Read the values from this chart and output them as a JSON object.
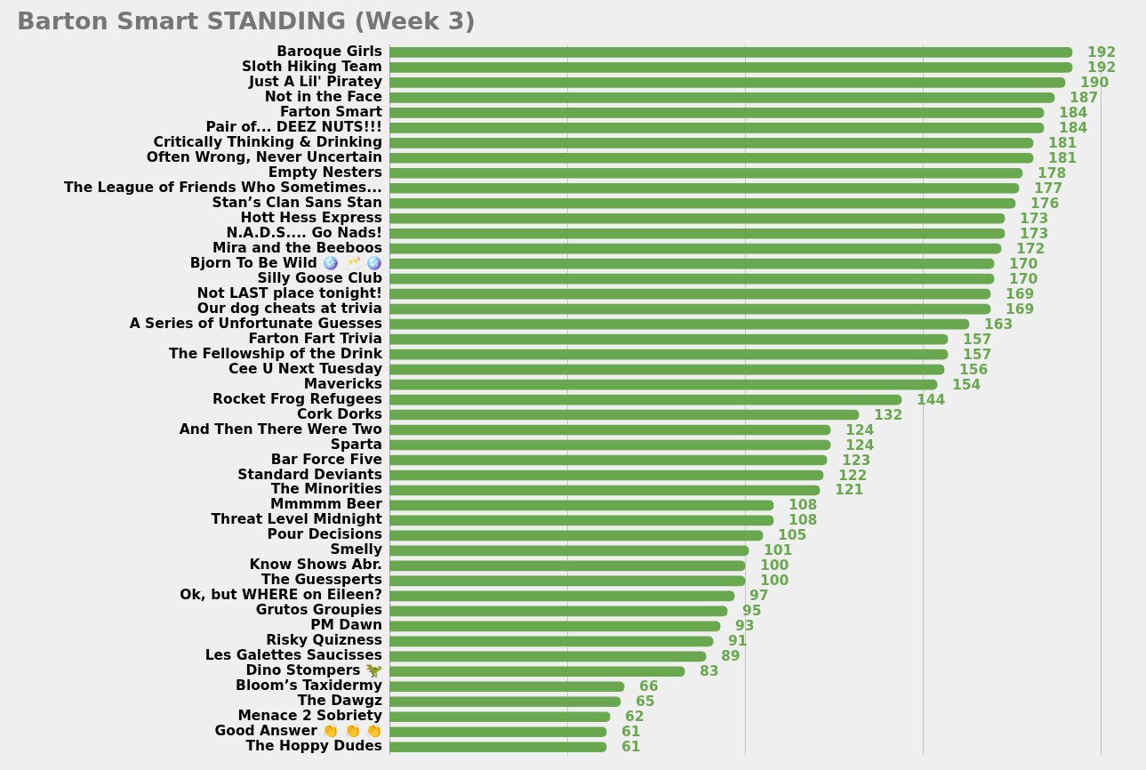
{
  "chart_data": {
    "type": "bar",
    "title": "Barton Smart STANDING (Week 3)",
    "orientation": "horizontal",
    "categories": [
      "Baroque Girls",
      "Sloth Hiking Team",
      "Just A Lil' Piratey",
      "Not in the Face",
      "Farton Smart",
      "Pair of... DEEZ NUTS!!!",
      "Critically Thinking & Drinking",
      "Often Wrong, Never Uncertain",
      "Empty Nesters",
      "The League of Friends Who Sometimes...",
      "Stan’s Clan Sans Stan",
      "Hott Hess Express",
      "N.A.D.S.... Go Nads!",
      "Mira and the Beeboos",
      "Bjorn To Be Wild 🪩 🥂 🪩",
      "Silly Goose Club",
      "Not LAST place tonight!",
      "Our dog cheats at trivia",
      "A Series of Unfortunate Guesses",
      "Farton Fart Trivia",
      "The Fellowship of the Drink",
      "Cee U Next Tuesday",
      "Mavericks",
      "Rocket Frog Refugees",
      "Cork Dorks",
      "And Then There Were Two",
      "Sparta",
      "Bar Force Five",
      "Standard Deviants",
      "The Minorities",
      "Mmmmm Beer",
      "Threat Level Midnight",
      "Pour Decisions",
      "Smelly",
      "Know Shows Abr.",
      "The Guessperts",
      "Ok, but WHERE on Eileen?",
      "Grutos Groupies",
      "PM Dawn",
      "Risky Quizness",
      "Les Galettes Saucisses",
      "Dino Stompers 🦖",
      "Bloom’s Taxidermy",
      "The Dawgz",
      "Menace 2 Sobriety",
      "Good Answer 👏 👏 👏",
      "The Hoppy Dudes"
    ],
    "values": [
      192,
      192,
      190,
      187,
      184,
      184,
      181,
      181,
      178,
      177,
      176,
      173,
      173,
      172,
      170,
      170,
      169,
      169,
      163,
      157,
      157,
      156,
      154,
      144,
      132,
      124,
      124,
      123,
      122,
      121,
      108,
      108,
      105,
      101,
      100,
      100,
      97,
      95,
      93,
      91,
      89,
      83,
      66,
      65,
      62,
      61,
      61
    ],
    "color": "#6aa84f",
    "xlim": [
      0,
      200
    ],
    "xticks": [
      {
        "value": 50,
        "label": null
      },
      {
        "value": 100,
        "label": null
      },
      {
        "value": 150,
        "label": null
      },
      {
        "value": 200,
        "label": null
      }
    ],
    "grid": "x",
    "data_labels": true,
    "tick_labels": "y"
  }
}
